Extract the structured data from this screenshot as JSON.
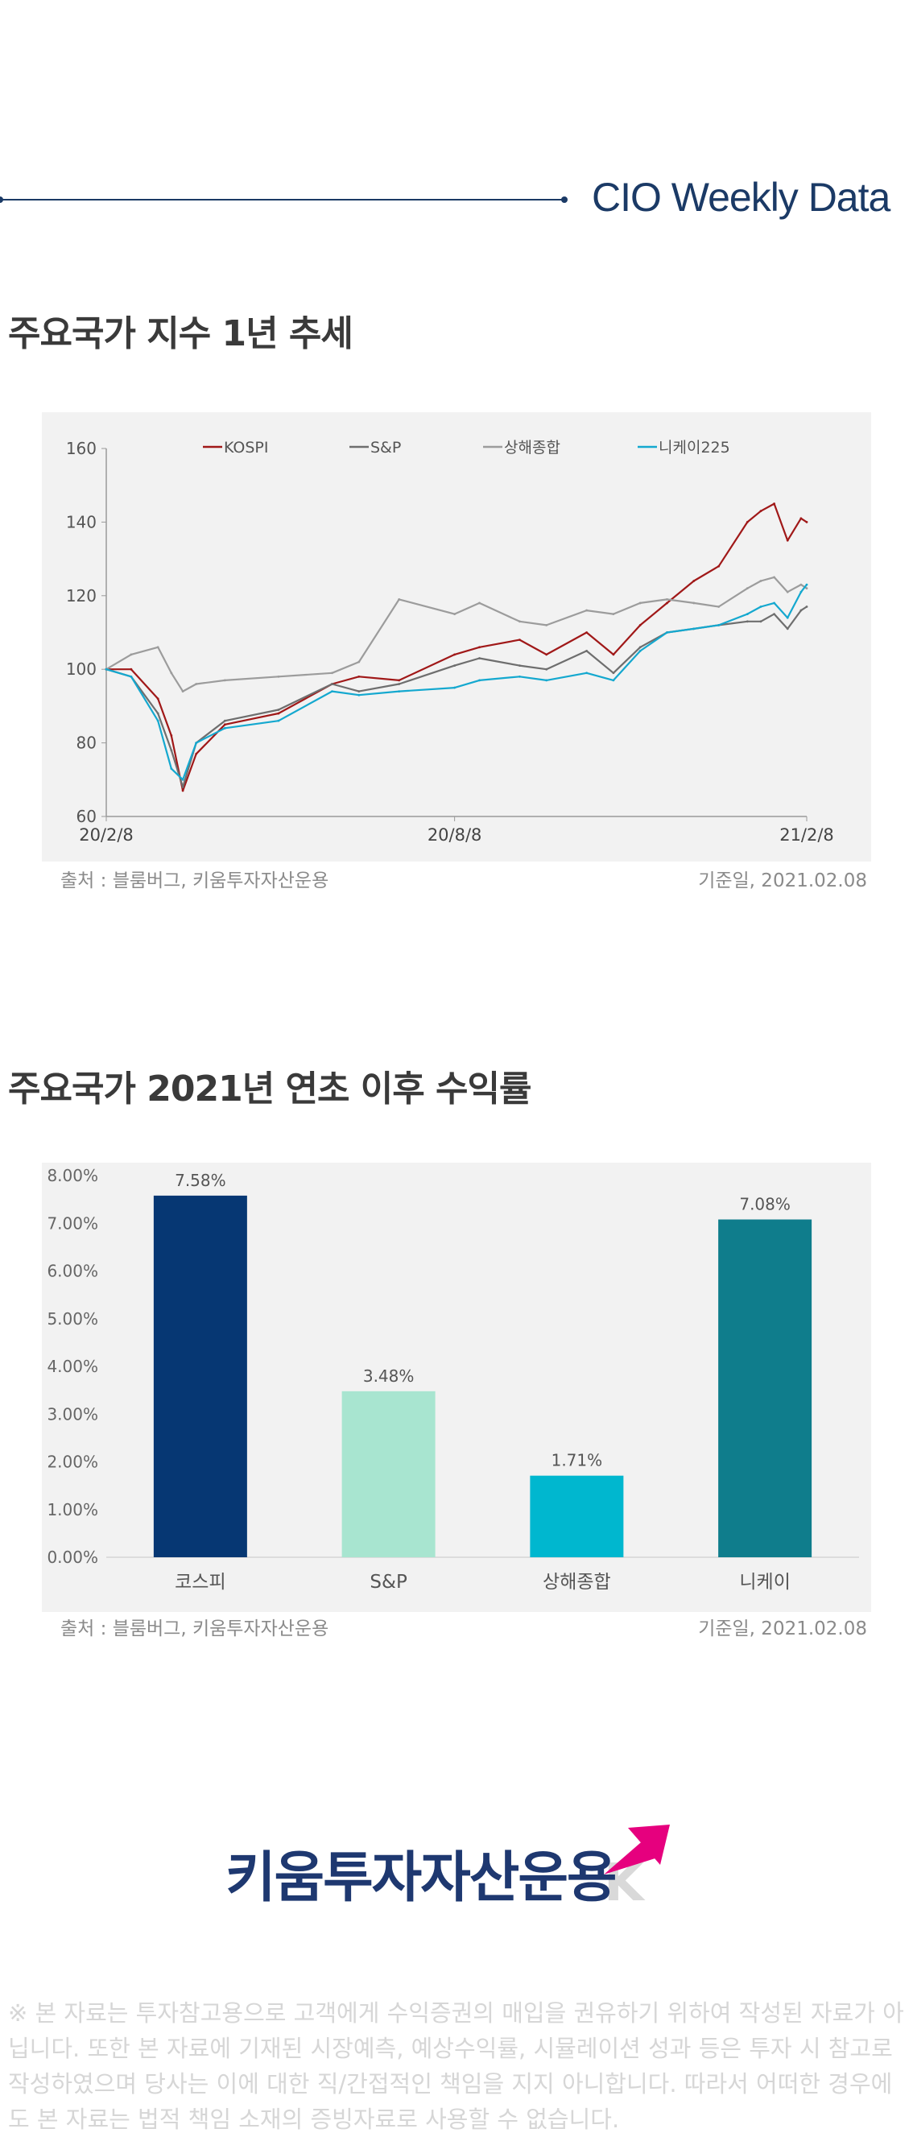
{
  "header": {
    "title": "CIO Weekly Data"
  },
  "section1": {
    "title": "주요국가 지수 1년 추세",
    "source": "출처 : 블룸버그, 키움투자자산운용",
    "base_date": "기준일, 2021.02.08"
  },
  "section2": {
    "title": "주요국가 2021년 연초 이후 수익률",
    "source": "출처 : 블룸버그, 키움투자자산운용",
    "base_date": "기준일, 2021.02.08"
  },
  "colors": {
    "kospi": "#a01818",
    "sp": "#6e6e6e",
    "shanghai": "#9c9c9c",
    "nikkei": "#14a8cf",
    "bar_kospi": "#063773",
    "bar_sp": "#a8e5d0",
    "bar_shanghai": "#00b7cf",
    "bar_nikkei": "#0f7d8c"
  },
  "chart_data": [
    {
      "type": "line",
      "x_ticks": [
        "20/2/8",
        "20/8/8",
        "21/2/8"
      ],
      "ylim": [
        60,
        160
      ],
      "y_ticks": [
        60,
        80,
        100,
        120,
        140,
        160
      ],
      "legend_position": "top",
      "grid": false,
      "series": [
        {
          "name": "KOSPI",
          "color_key": "kospi",
          "x": [
            "20/2/8",
            "20/2/21",
            "20/3/6",
            "20/3/13",
            "20/3/19",
            "20/3/26",
            "20/4/10",
            "20/5/8",
            "20/6/5",
            "20/6/19",
            "20/7/10",
            "20/8/8",
            "20/8/21",
            "20/9/11",
            "20/9/25",
            "20/10/16",
            "20/10/30",
            "20/11/13",
            "20/11/27",
            "20/12/11",
            "20/12/24",
            "21/1/8",
            "21/1/15",
            "21/1/22",
            "21/1/29",
            "21/2/5",
            "21/2/8"
          ],
          "values": [
            100,
            100,
            92,
            82,
            67,
            77,
            85,
            88,
            96,
            98,
            97,
            104,
            106,
            108,
            104,
            110,
            104,
            112,
            118,
            124,
            128,
            140,
            143,
            145,
            135,
            141,
            140
          ]
        },
        {
          "name": "S&P",
          "color_key": "sp",
          "x": [
            "20/2/8",
            "20/2/21",
            "20/3/6",
            "20/3/13",
            "20/3/19",
            "20/3/26",
            "20/4/10",
            "20/5/8",
            "20/6/5",
            "20/6/19",
            "20/7/10",
            "20/8/8",
            "20/8/21",
            "20/9/11",
            "20/9/25",
            "20/10/16",
            "20/10/30",
            "20/11/13",
            "20/11/27",
            "20/12/11",
            "20/12/24",
            "21/1/8",
            "21/1/15",
            "21/1/22",
            "21/1/29",
            "21/2/5",
            "21/2/8"
          ],
          "values": [
            100,
            98,
            88,
            78,
            68,
            80,
            86,
            89,
            96,
            94,
            96,
            101,
            103,
            101,
            100,
            105,
            99,
            106,
            110,
            111,
            112,
            113,
            113,
            115,
            111,
            116,
            117
          ]
        },
        {
          "name": "상해종합",
          "color_key": "shanghai",
          "x": [
            "20/2/8",
            "20/2/21",
            "20/3/6",
            "20/3/13",
            "20/3/19",
            "20/3/26",
            "20/4/10",
            "20/5/8",
            "20/6/5",
            "20/6/19",
            "20/7/10",
            "20/8/8",
            "20/8/21",
            "20/9/11",
            "20/9/25",
            "20/10/16",
            "20/10/30",
            "20/11/13",
            "20/11/27",
            "20/12/11",
            "20/12/24",
            "21/1/8",
            "21/1/15",
            "21/1/22",
            "21/1/29",
            "21/2/5",
            "21/2/8"
          ],
          "values": [
            100,
            104,
            106,
            99,
            94,
            96,
            97,
            98,
            99,
            102,
            119,
            115,
            118,
            113,
            112,
            116,
            115,
            118,
            119,
            118,
            117,
            122,
            124,
            125,
            121,
            123,
            122
          ]
        },
        {
          "name": "니케이225",
          "color_key": "nikkei",
          "x": [
            "20/2/8",
            "20/2/21",
            "20/3/6",
            "20/3/13",
            "20/3/19",
            "20/3/26",
            "20/4/10",
            "20/5/8",
            "20/6/5",
            "20/6/19",
            "20/7/10",
            "20/8/8",
            "20/8/21",
            "20/9/11",
            "20/9/25",
            "20/10/16",
            "20/10/30",
            "20/11/13",
            "20/11/27",
            "20/12/11",
            "20/12/24",
            "21/1/8",
            "21/1/15",
            "21/1/22",
            "21/1/29",
            "21/2/5",
            "21/2/8"
          ],
          "values": [
            100,
            98,
            86,
            73,
            70,
            80,
            84,
            86,
            94,
            93,
            94,
            95,
            97,
            98,
            97,
            99,
            97,
            105,
            110,
            111,
            112,
            115,
            117,
            118,
            114,
            121,
            123
          ]
        }
      ]
    },
    {
      "type": "bar",
      "categories": [
        "코스피",
        "S&P",
        "상해종합",
        "니케이"
      ],
      "values": [
        7.58,
        3.48,
        1.71,
        7.08
      ],
      "data_labels": [
        "7.58%",
        "3.48%",
        "1.71%",
        "7.08%"
      ],
      "color_keys": [
        "bar_kospi",
        "bar_sp",
        "bar_shanghai",
        "bar_nikkei"
      ],
      "ylim": [
        0,
        8
      ],
      "y_ticks": [
        "0.00%",
        "1.00%",
        "2.00%",
        "3.00%",
        "4.00%",
        "5.00%",
        "6.00%",
        "7.00%",
        "8.00%"
      ]
    }
  ],
  "logo": {
    "text": "키움투자자산운용"
  },
  "disclaimer": "※ 본 자료는 투자참고용으로 고객에게 수익증권의 매입을 권유하기 위하여 작성된 자료가 아닙니다. 또한 본 자료에 기재된 시장예측, 예상수익률, 시뮬레이션 성과 등은 투자 시 참고로 작성하였으며 당사는 이에 대한 직/간접적인 책임을 지지 아니합니다. 따라서 어떠한 경우에도 본 자료는 법적 책임 소재의 증빙자료로 사용할 수 없습니다."
}
